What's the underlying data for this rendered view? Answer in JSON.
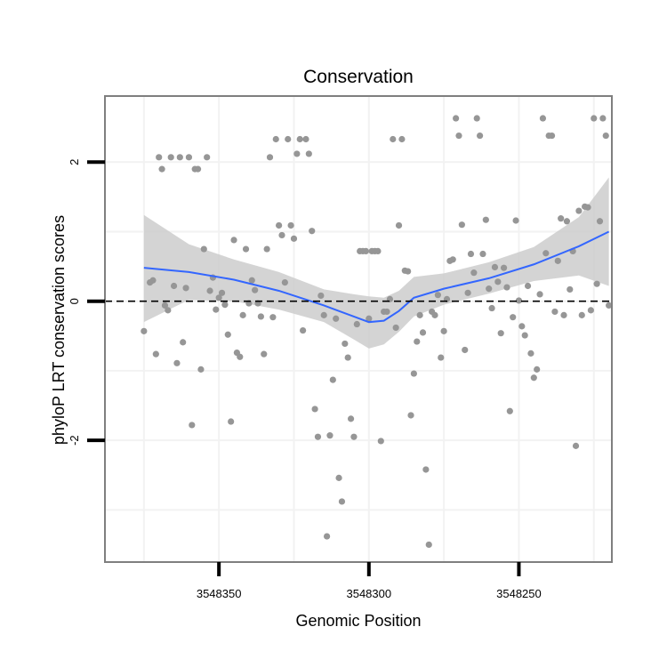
{
  "chart_data": {
    "type": "scatter",
    "title": "Conservation",
    "xlabel": "Genomic Position",
    "ylabel": "phyloP LRT conservation scores",
    "x_reversed": true,
    "xlim": [
      3548219,
      3548388
    ],
    "ylim": [
      -3.75,
      2.95
    ],
    "x_ticks": [
      {
        "value": 3548350,
        "label": "3548350"
      },
      {
        "value": 3548300,
        "label": "3548300"
      },
      {
        "value": 3548250,
        "label": "3548250"
      }
    ],
    "y_ticks": [
      {
        "value": 2,
        "label": "2"
      },
      {
        "value": 0,
        "label": "0"
      },
      {
        "value": -2,
        "label": "-2"
      }
    ],
    "reference_line": {
      "y": 0,
      "style": "dashed"
    },
    "grid": true,
    "colors": {
      "points": "#969696",
      "smooth_line": "#3366ff",
      "confidence_band": "#cccccc",
      "panel_border": "#7f7f7f",
      "grid": "#f2f2f2"
    },
    "points": [
      {
        "x": 3548375,
        "y": -0.43
      },
      {
        "x": 3548373,
        "y": 0.27
      },
      {
        "x": 3548372,
        "y": 0.3
      },
      {
        "x": 3548371,
        "y": -0.76
      },
      {
        "x": 3548370,
        "y": 2.07
      },
      {
        "x": 3548369,
        "y": 1.9
      },
      {
        "x": 3548368,
        "y": -0.06
      },
      {
        "x": 3548367,
        "y": -0.13
      },
      {
        "x": 3548366,
        "y": 2.07
      },
      {
        "x": 3548365,
        "y": 0.22
      },
      {
        "x": 3548364,
        "y": -0.89
      },
      {
        "x": 3548363,
        "y": 2.07
      },
      {
        "x": 3548362,
        "y": -0.59
      },
      {
        "x": 3548361,
        "y": 0.19
      },
      {
        "x": 3548360,
        "y": 2.07
      },
      {
        "x": 3548359,
        "y": -1.78
      },
      {
        "x": 3548358,
        "y": 1.9
      },
      {
        "x": 3548357,
        "y": 1.9
      },
      {
        "x": 3548356,
        "y": -0.98
      },
      {
        "x": 3548355,
        "y": 0.75
      },
      {
        "x": 3548354,
        "y": 2.07
      },
      {
        "x": 3548353,
        "y": 0.15
      },
      {
        "x": 3548352,
        "y": 0.34
      },
      {
        "x": 3548351,
        "y": -0.12
      },
      {
        "x": 3548350,
        "y": 0.05
      },
      {
        "x": 3548349,
        "y": 0.12
      },
      {
        "x": 3548348,
        "y": -0.05
      },
      {
        "x": 3548347,
        "y": -0.48
      },
      {
        "x": 3548346,
        "y": -1.73
      },
      {
        "x": 3548345,
        "y": 0.88
      },
      {
        "x": 3548344,
        "y": -0.74
      },
      {
        "x": 3548343,
        "y": -0.8
      },
      {
        "x": 3548342,
        "y": -0.2
      },
      {
        "x": 3548341,
        "y": 0.75
      },
      {
        "x": 3548340,
        "y": -0.03
      },
      {
        "x": 3548339,
        "y": 0.3
      },
      {
        "x": 3548338,
        "y": 0.16
      },
      {
        "x": 3548337,
        "y": -0.03
      },
      {
        "x": 3548336,
        "y": -0.22
      },
      {
        "x": 3548335,
        "y": -0.76
      },
      {
        "x": 3548334,
        "y": 0.75
      },
      {
        "x": 3548333,
        "y": 2.07
      },
      {
        "x": 3548332,
        "y": -0.23
      },
      {
        "x": 3548331,
        "y": 2.33
      },
      {
        "x": 3548330,
        "y": 1.09
      },
      {
        "x": 3548329,
        "y": 0.95
      },
      {
        "x": 3548328,
        "y": 0.27
      },
      {
        "x": 3548327,
        "y": 2.33
      },
      {
        "x": 3548326,
        "y": 1.09
      },
      {
        "x": 3548325,
        "y": 0.9
      },
      {
        "x": 3548324,
        "y": 2.12
      },
      {
        "x": 3548323,
        "y": 2.33
      },
      {
        "x": 3548322,
        "y": -0.42
      },
      {
        "x": 3548321,
        "y": 2.33
      },
      {
        "x": 3548320,
        "y": 2.12
      },
      {
        "x": 3548319,
        "y": 1.01
      },
      {
        "x": 3548318,
        "y": -1.55
      },
      {
        "x": 3548317,
        "y": -1.95
      },
      {
        "x": 3548316,
        "y": 0.08
      },
      {
        "x": 3548315,
        "y": -0.2
      },
      {
        "x": 3548314,
        "y": -3.38
      },
      {
        "x": 3548313,
        "y": -1.93
      },
      {
        "x": 3548312,
        "y": -1.13
      },
      {
        "x": 3548311,
        "y": -0.25
      },
      {
        "x": 3548310,
        "y": -2.54
      },
      {
        "x": 3548309,
        "y": -2.88
      },
      {
        "x": 3548308,
        "y": -0.61
      },
      {
        "x": 3548307,
        "y": -0.81
      },
      {
        "x": 3548306,
        "y": -1.69
      },
      {
        "x": 3548305,
        "y": -1.95
      },
      {
        "x": 3548304,
        "y": -0.33
      },
      {
        "x": 3548303,
        "y": 0.72
      },
      {
        "x": 3548302,
        "y": 0.72
      },
      {
        "x": 3548301,
        "y": 0.72
      },
      {
        "x": 3548300,
        "y": -0.25
      },
      {
        "x": 3548299,
        "y": 0.72
      },
      {
        "x": 3548298,
        "y": 0.72
      },
      {
        "x": 3548297,
        "y": 0.72
      },
      {
        "x": 3548296,
        "y": -2.01
      },
      {
        "x": 3548295,
        "y": -0.15
      },
      {
        "x": 3548294,
        "y": -0.15
      },
      {
        "x": 3548293,
        "y": 0.03
      },
      {
        "x": 3548292,
        "y": 2.33
      },
      {
        "x": 3548291,
        "y": -0.38
      },
      {
        "x": 3548290,
        "y": 1.09
      },
      {
        "x": 3548289,
        "y": 2.33
      },
      {
        "x": 3548288,
        "y": 0.44
      },
      {
        "x": 3548287,
        "y": 0.43
      },
      {
        "x": 3548286,
        "y": -1.64
      },
      {
        "x": 3548285,
        "y": -1.04
      },
      {
        "x": 3548284,
        "y": -0.58
      },
      {
        "x": 3548283,
        "y": -0.2
      },
      {
        "x": 3548282,
        "y": -0.45
      },
      {
        "x": 3548281,
        "y": -2.42
      },
      {
        "x": 3548280,
        "y": -3.5
      },
      {
        "x": 3548279,
        "y": -0.15
      },
      {
        "x": 3548278,
        "y": -0.2
      },
      {
        "x": 3548277,
        "y": 0.09
      },
      {
        "x": 3548276,
        "y": -0.81
      },
      {
        "x": 3548275,
        "y": -0.43
      },
      {
        "x": 3548274,
        "y": 0.03
      },
      {
        "x": 3548273,
        "y": 0.58
      },
      {
        "x": 3548272,
        "y": 0.6
      },
      {
        "x": 3548271,
        "y": 2.63
      },
      {
        "x": 3548270,
        "y": 2.38
      },
      {
        "x": 3548269,
        "y": 1.1
      },
      {
        "x": 3548268,
        "y": -0.7
      },
      {
        "x": 3548267,
        "y": 0.12
      },
      {
        "x": 3548266,
        "y": 0.68
      },
      {
        "x": 3548265,
        "y": 0.41
      },
      {
        "x": 3548264,
        "y": 2.63
      },
      {
        "x": 3548263,
        "y": 2.38
      },
      {
        "x": 3548262,
        "y": 0.68
      },
      {
        "x": 3548261,
        "y": 1.17
      },
      {
        "x": 3548260,
        "y": 0.18
      },
      {
        "x": 3548259,
        "y": -0.1
      },
      {
        "x": 3548258,
        "y": 0.49
      },
      {
        "x": 3548257,
        "y": 0.28
      },
      {
        "x": 3548256,
        "y": -0.46
      },
      {
        "x": 3548255,
        "y": 0.48
      },
      {
        "x": 3548254,
        "y": 0.2
      },
      {
        "x": 3548253,
        "y": -1.58
      },
      {
        "x": 3548252,
        "y": -0.23
      },
      {
        "x": 3548251,
        "y": 1.16
      },
      {
        "x": 3548250,
        "y": 0.01
      },
      {
        "x": 3548249,
        "y": -0.36
      },
      {
        "x": 3548248,
        "y": -0.49
      },
      {
        "x": 3548247,
        "y": 0.22
      },
      {
        "x": 3548246,
        "y": -0.75
      },
      {
        "x": 3548245,
        "y": -1.1
      },
      {
        "x": 3548244,
        "y": -0.98
      },
      {
        "x": 3548243,
        "y": 0.1
      },
      {
        "x": 3548242,
        "y": 2.63
      },
      {
        "x": 3548241,
        "y": 0.69
      },
      {
        "x": 3548240,
        "y": 2.38
      },
      {
        "x": 3548239,
        "y": 2.38
      },
      {
        "x": 3548238,
        "y": -0.15
      },
      {
        "x": 3548237,
        "y": 0.58
      },
      {
        "x": 3548236,
        "y": 1.19
      },
      {
        "x": 3548235,
        "y": -0.2
      },
      {
        "x": 3548234,
        "y": 1.15
      },
      {
        "x": 3548233,
        "y": 0.17
      },
      {
        "x": 3548232,
        "y": 0.72
      },
      {
        "x": 3548231,
        "y": -2.08
      },
      {
        "x": 3548230,
        "y": 1.3
      },
      {
        "x": 3548229,
        "y": -0.2
      },
      {
        "x": 3548228,
        "y": 1.36
      },
      {
        "x": 3548227,
        "y": 1.35
      },
      {
        "x": 3548226,
        "y": -0.13
      },
      {
        "x": 3548225,
        "y": 2.63
      },
      {
        "x": 3548224,
        "y": 0.25
      },
      {
        "x": 3548223,
        "y": 1.15
      },
      {
        "x": 3548222,
        "y": 2.63
      },
      {
        "x": 3548221,
        "y": 2.38
      },
      {
        "x": 3548220,
        "y": -0.06
      }
    ],
    "smooth": [
      {
        "x": 3548375,
        "y": 0.48,
        "lo": -0.3,
        "hi": 1.24
      },
      {
        "x": 3548360,
        "y": 0.42,
        "lo": 0.02,
        "hi": 0.82
      },
      {
        "x": 3548345,
        "y": 0.31,
        "lo": 0.0,
        "hi": 0.6
      },
      {
        "x": 3548330,
        "y": 0.15,
        "lo": -0.12,
        "hi": 0.42
      },
      {
        "x": 3548315,
        "y": -0.06,
        "lo": -0.3,
        "hi": 0.17
      },
      {
        "x": 3548305,
        "y": -0.22,
        "lo": -0.55,
        "hi": 0.1
      },
      {
        "x": 3548300,
        "y": -0.3,
        "lo": -0.68,
        "hi": 0.07
      },
      {
        "x": 3548295,
        "y": -0.28,
        "lo": -0.62,
        "hi": 0.05
      },
      {
        "x": 3548290,
        "y": -0.14,
        "lo": -0.44,
        "hi": 0.15
      },
      {
        "x": 3548285,
        "y": 0.05,
        "lo": -0.22,
        "hi": 0.35
      },
      {
        "x": 3548275,
        "y": 0.18,
        "lo": -0.05,
        "hi": 0.4
      },
      {
        "x": 3548260,
        "y": 0.33,
        "lo": 0.11,
        "hi": 0.56
      },
      {
        "x": 3548245,
        "y": 0.53,
        "lo": 0.29,
        "hi": 0.78
      },
      {
        "x": 3548230,
        "y": 0.79,
        "lo": 0.37,
        "hi": 1.21
      },
      {
        "x": 3548220,
        "y": 1.0,
        "lo": 0.22,
        "hi": 1.78
      }
    ]
  }
}
